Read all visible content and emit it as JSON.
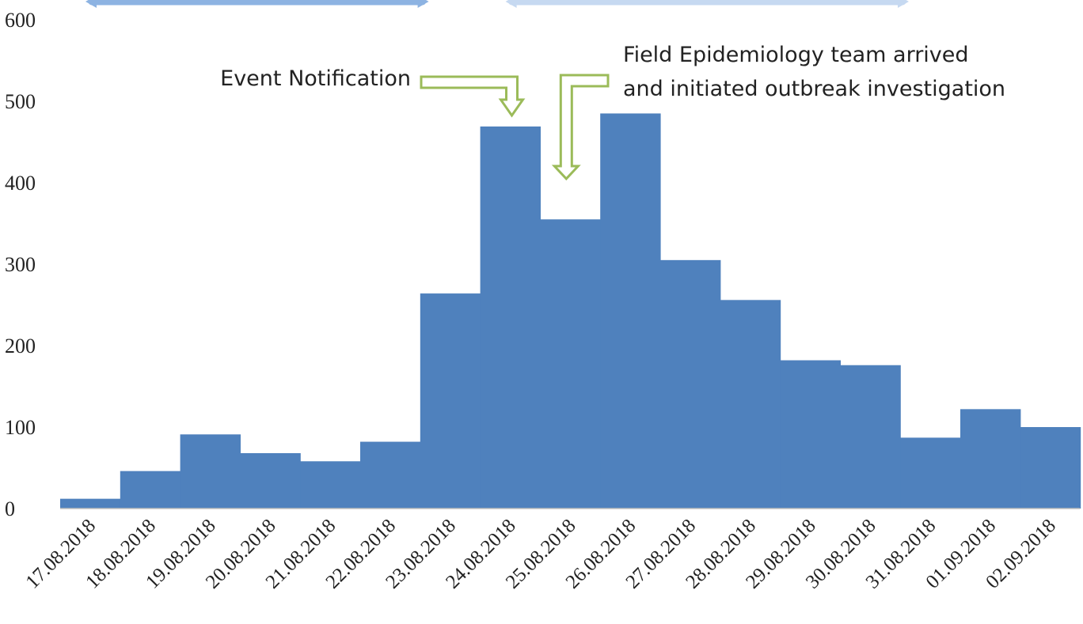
{
  "chart_data": {
    "type": "bar",
    "title": "",
    "xlabel": "",
    "ylabel": "",
    "ylim": [
      0,
      600
    ],
    "yticks": [
      "0",
      "100",
      "200",
      "300",
      "400",
      "500",
      "600"
    ],
    "grid": false,
    "legend": "none",
    "bar_color": "#4f81bd",
    "categories": [
      "17.08.2018",
      "18.08.2018",
      "19.08.2018",
      "20.08.2018",
      "21.08.2018",
      "22.08.2018",
      "23.08.2018",
      "24.08.2018",
      "25.08.2018",
      "26.08.2018",
      "27.08.2018",
      "28.08.2018",
      "29.08.2018",
      "30.08.2018",
      "31.08.2018",
      "01.09.2018",
      "02.09.2018"
    ],
    "values": [
      12,
      46,
      91,
      68,
      58,
      82,
      264,
      469,
      355,
      485,
      305,
      256,
      182,
      176,
      87,
      122,
      100
    ],
    "annotations": [
      {
        "text_lines": [
          "Event Notification"
        ],
        "target": "24.08.2018",
        "arrow_color": "#9bbb59"
      },
      {
        "text_lines": [
          "Field Epidemiology team arrived",
          "and initiated outbreak investigation"
        ],
        "target": "25.08.2018",
        "arrow_color": "#9bbb59"
      }
    ],
    "top_brackets": [
      {
        "from": "17.08.2018",
        "to": "23.08.2018",
        "color": "#8db3e2"
      },
      {
        "from": "24.08.2018",
        "to": "31.08.2018",
        "color": "#c6d9f1"
      }
    ]
  }
}
